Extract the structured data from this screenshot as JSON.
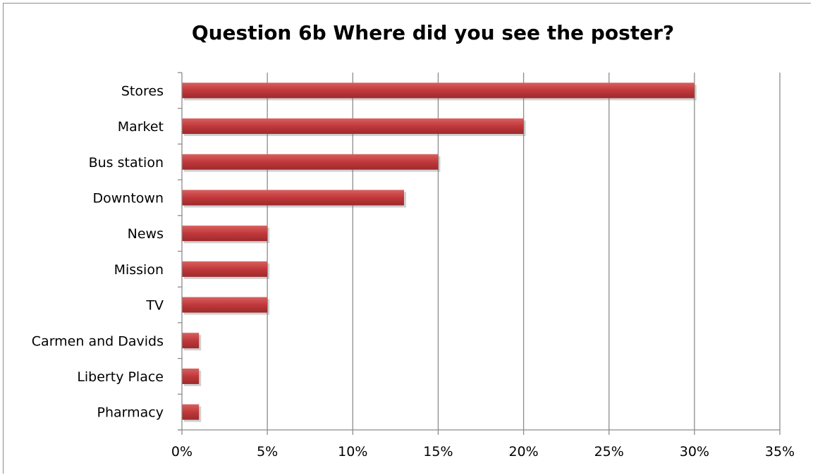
{
  "chart_data": {
    "type": "bar",
    "orientation": "horizontal",
    "title": "Question 6b Where did you see the poster?",
    "categories": [
      "Stores",
      "Market",
      "Bus station",
      "Downtown",
      "News",
      "Mission",
      "TV",
      "Carmen and Davids",
      "Liberty Place",
      "Pharmacy"
    ],
    "values": [
      30,
      20,
      15,
      13,
      5,
      5,
      5,
      1,
      1,
      1
    ],
    "value_unit": "%",
    "xlim": [
      0,
      35
    ],
    "x_ticks": [
      0,
      5,
      10,
      15,
      20,
      25,
      30,
      35
    ],
    "x_tick_labels": [
      "0%",
      "5%",
      "10%",
      "15%",
      "20%",
      "25%",
      "30%",
      "35%"
    ],
    "grid": "vertical major gridlines",
    "legend": "none",
    "bar_color": "#c0383b"
  }
}
